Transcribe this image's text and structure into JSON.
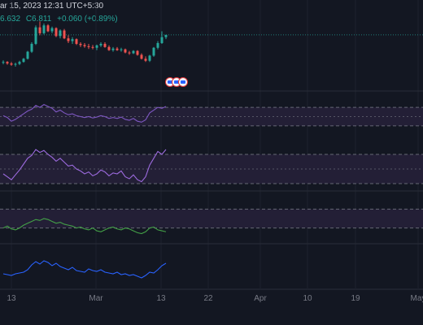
{
  "header": {
    "datetime": "ar 15, 2023 12:31 UTC+5:30",
    "values": [
      "6.632",
      "C6.811",
      "+0.060 (+0.89%)"
    ],
    "value_colors": [
      "#26a69a",
      "#26a69a",
      "#26a69a"
    ]
  },
  "time_axis": {
    "labels": [
      "13",
      "Mar",
      "13",
      "22",
      "Apr",
      "10",
      "19",
      "May"
    ]
  },
  "event_badges": [
    "us-flag-icon",
    "us-flag-icon",
    "us-flag-icon"
  ],
  "colors": {
    "background": "#131722",
    "up": "#26a69a",
    "down": "#ef5350",
    "rsi": "#7e57c2",
    "stoch": "#9c6ade",
    "green_osc": "#43a047",
    "blue_osc": "#2962ff",
    "band_fill": "#231f36",
    "grid": "#1e222d",
    "dashed": "#787b86"
  },
  "chart_data": [
    {
      "type": "candlestick",
      "ohlc": [
        [
          6.1,
          6.16,
          6.06,
          6.12
        ],
        [
          6.12,
          6.14,
          6.05,
          6.08
        ],
        [
          6.08,
          6.12,
          6.02,
          6.05
        ],
        [
          6.05,
          6.1,
          6.0,
          6.07
        ],
        [
          6.07,
          6.15,
          6.04,
          6.12
        ],
        [
          6.12,
          6.22,
          6.1,
          6.2
        ],
        [
          6.2,
          6.4,
          6.18,
          6.38
        ],
        [
          6.38,
          6.62,
          6.35,
          6.58
        ],
        [
          6.58,
          7.05,
          6.55,
          7.0
        ],
        [
          7.0,
          7.15,
          6.8,
          6.85
        ],
        [
          6.85,
          7.1,
          6.82,
          7.05
        ],
        [
          7.05,
          7.08,
          6.88,
          6.9
        ],
        [
          6.9,
          7.02,
          6.85,
          6.98
        ],
        [
          6.98,
          7.0,
          6.75,
          6.78
        ],
        [
          6.78,
          6.95,
          6.72,
          6.92
        ],
        [
          6.92,
          6.96,
          6.7,
          6.72
        ],
        [
          6.72,
          6.8,
          6.6,
          6.65
        ],
        [
          6.65,
          6.75,
          6.58,
          6.7
        ],
        [
          6.7,
          6.72,
          6.55,
          6.58
        ],
        [
          6.58,
          6.62,
          6.5,
          6.55
        ],
        [
          6.55,
          6.6,
          6.48,
          6.52
        ],
        [
          6.52,
          6.58,
          6.45,
          6.5
        ],
        [
          6.5,
          6.55,
          6.44,
          6.48
        ],
        [
          6.48,
          6.56,
          6.42,
          6.54
        ],
        [
          6.54,
          6.62,
          6.5,
          6.58
        ],
        [
          6.58,
          6.62,
          6.48,
          6.5
        ],
        [
          6.5,
          6.54,
          6.4,
          6.42
        ],
        [
          6.42,
          6.5,
          6.38,
          6.46
        ],
        [
          6.46,
          6.5,
          6.4,
          6.42
        ],
        [
          6.42,
          6.48,
          6.38,
          6.44
        ],
        [
          6.44,
          6.46,
          6.34,
          6.36
        ],
        [
          6.36,
          6.4,
          6.3,
          6.34
        ],
        [
          6.34,
          6.42,
          6.32,
          6.4
        ],
        [
          6.4,
          6.42,
          6.28,
          6.3
        ],
        [
          6.3,
          6.34,
          6.18,
          6.2
        ],
        [
          6.2,
          6.26,
          6.12,
          6.15
        ],
        [
          6.15,
          6.3,
          6.12,
          6.28
        ],
        [
          6.28,
          6.5,
          6.25,
          6.48
        ],
        [
          6.48,
          6.65,
          6.44,
          6.6
        ],
        [
          6.6,
          6.9,
          6.58,
          6.75
        ],
        [
          6.75,
          6.8,
          6.7,
          6.81
        ]
      ]
    },
    {
      "type": "line",
      "name": "",
      "values": [
        52,
        48,
        40,
        44,
        50,
        56,
        62,
        66,
        74,
        70,
        76,
        72,
        68,
        60,
        64,
        58,
        54,
        56,
        52,
        50,
        48,
        50,
        47,
        49,
        52,
        50,
        46,
        48,
        46,
        49,
        44,
        42,
        46,
        40,
        38,
        43,
        58,
        64,
        70,
        68,
        72
      ]
    },
    {
      "type": "line",
      "name": "",
      "values": [
        40,
        34,
        28,
        38,
        48,
        60,
        72,
        78,
        90,
        84,
        88,
        80,
        74,
        66,
        72,
        64,
        56,
        58,
        50,
        46,
        40,
        44,
        36,
        40,
        48,
        44,
        36,
        42,
        40,
        46,
        34,
        30,
        38,
        28,
        24,
        34,
        58,
        72,
        86,
        80,
        90
      ]
    },
    {
      "type": "line",
      "name": "",
      "values": [
        30,
        34,
        28,
        26,
        30,
        36,
        40,
        44,
        48,
        46,
        50,
        48,
        44,
        40,
        42,
        38,
        36,
        34,
        30,
        32,
        28,
        26,
        30,
        24,
        22,
        26,
        30,
        32,
        28,
        26,
        30,
        28,
        24,
        20,
        18,
        22,
        30,
        32,
        26,
        24,
        22
      ]
    },
    {
      "type": "line",
      "name": "",
      "values": [
        30,
        28,
        26,
        30,
        32,
        34,
        40,
        52,
        60,
        54,
        62,
        58,
        50,
        56,
        48,
        44,
        40,
        46,
        38,
        36,
        34,
        42,
        38,
        36,
        40,
        34,
        32,
        30,
        34,
        28,
        30,
        26,
        28,
        24,
        20,
        26,
        34,
        32,
        40,
        50,
        56
      ]
    }
  ]
}
